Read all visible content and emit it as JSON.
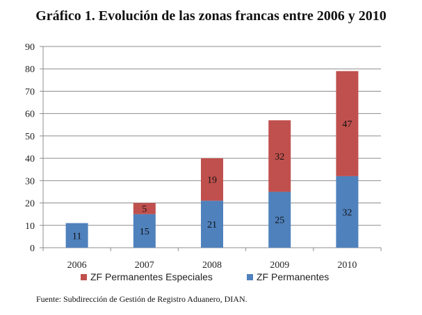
{
  "title": "Gráfico 1. Evolución de las zonas francas entre 2006 y 2010",
  "source": "Fuente: Subdirección de Gestión de Registro Aduanero, DIAN.",
  "chart_data": {
    "type": "bar",
    "stacked": true,
    "categories": [
      "2006",
      "2007",
      "2008",
      "2009",
      "2010"
    ],
    "series": [
      {
        "name": "ZF Permanentes",
        "values": [
          11,
          15,
          21,
          25,
          32
        ],
        "color": "#4f81bd"
      },
      {
        "name": "ZF Permanentes Especiales",
        "values": [
          0,
          5,
          19,
          32,
          47
        ],
        "color": "#c0504d"
      }
    ],
    "ylim": [
      0,
      90
    ],
    "yticks": [
      0,
      10,
      20,
      30,
      40,
      50,
      60,
      70,
      80,
      90
    ],
    "grid": true,
    "legend_position": "bottom",
    "legend_order": [
      "ZF Permanentes Especiales",
      "ZF Permanentes"
    ]
  }
}
